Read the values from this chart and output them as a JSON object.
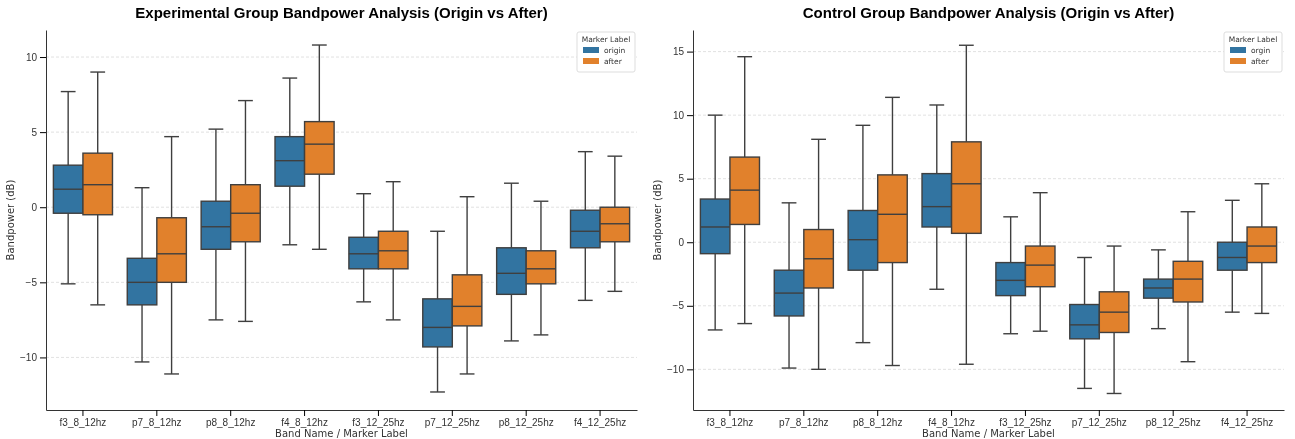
{
  "chart_data": [
    {
      "type": "box",
      "title": "Experimental Group Bandpower Analysis (Origin vs After)",
      "xlabel": "Band Name / Marker Label",
      "ylabel": "Bandpower (dB)",
      "legend_title": "Marker Label",
      "legend": "top right",
      "grid": "y",
      "ylim": [
        -13.5,
        11.8
      ],
      "yticks": [
        -10,
        -5,
        0,
        5,
        10
      ],
      "categories": [
        "f3_8_12hz",
        "p7_8_12hz",
        "p8_8_12hz",
        "f4_8_12hz",
        "f3_12_25hz",
        "p7_12_25hz",
        "p8_12_25hz",
        "f4_12_25hz"
      ],
      "series": [
        {
          "name": "origin",
          "color": "#3274a1",
          "boxes": [
            {
              "low": -5.1,
              "q1": -0.4,
              "median": 1.2,
              "q3": 2.8,
              "high": 7.7
            },
            {
              "low": -10.3,
              "q1": -6.5,
              "median": -5.0,
              "q3": -3.4,
              "high": 1.3
            },
            {
              "low": -7.5,
              "q1": -2.8,
              "median": -1.3,
              "q3": 0.4,
              "high": 5.2
            },
            {
              "low": -2.5,
              "q1": 1.4,
              "median": 3.1,
              "q3": 4.7,
              "high": 8.6
            },
            {
              "low": -6.3,
              "q1": -4.1,
              "median": -3.1,
              "q3": -2.0,
              "high": 0.9
            },
            {
              "low": -12.3,
              "q1": -9.3,
              "median": -8.0,
              "q3": -6.1,
              "high": -1.6
            },
            {
              "low": -8.9,
              "q1": -5.8,
              "median": -4.4,
              "q3": -2.7,
              "high": 1.6
            },
            {
              "low": -6.2,
              "q1": -2.7,
              "median": -1.6,
              "q3": -0.2,
              "high": 3.7
            }
          ]
        },
        {
          "name": "after",
          "color": "#e1812c",
          "boxes": [
            {
              "low": -6.5,
              "q1": -0.5,
              "median": 1.5,
              "q3": 3.6,
              "high": 9.0
            },
            {
              "low": -11.1,
              "q1": -5.0,
              "median": -3.1,
              "q3": -0.7,
              "high": 4.7
            },
            {
              "low": -7.6,
              "q1": -2.3,
              "median": -0.4,
              "q3": 1.5,
              "high": 7.1
            },
            {
              "low": -2.8,
              "q1": 2.2,
              "median": 4.2,
              "q3": 5.7,
              "high": 10.8
            },
            {
              "low": -7.5,
              "q1": -4.1,
              "median": -2.9,
              "q3": -1.6,
              "high": 1.7
            },
            {
              "low": -11.1,
              "q1": -7.9,
              "median": -6.6,
              "q3": -4.5,
              "high": 0.7
            },
            {
              "low": -8.5,
              "q1": -5.1,
              "median": -4.1,
              "q3": -2.9,
              "high": 0.4
            },
            {
              "low": -5.6,
              "q1": -2.3,
              "median": -1.1,
              "q3": 0.0,
              "high": 3.4
            }
          ]
        }
      ]
    },
    {
      "type": "box",
      "title": "Control Group Bandpower Analysis (Origin vs After)",
      "xlabel": "Band Name / Marker Label",
      "ylabel": "Bandpower (dB)",
      "legend_title": "Marker Label",
      "legend": "top right",
      "grid": "y",
      "ylim": [
        -13.2,
        16.7
      ],
      "yticks": [
        -10,
        -5,
        0,
        5,
        10,
        15
      ],
      "categories": [
        "f3_8_12hz",
        "p7_8_12hz",
        "p8_8_12hz",
        "f4_8_12hz",
        "f3_12_25hz",
        "p7_12_25hz",
        "p8_12_25hz",
        "f4_12_25hz"
      ],
      "series": [
        {
          "name": "orgin",
          "color": "#3274a1",
          "boxes": [
            {
              "low": -6.9,
              "q1": -0.9,
              "median": 1.2,
              "q3": 3.4,
              "high": 10.0
            },
            {
              "low": -9.9,
              "q1": -5.8,
              "median": -4.0,
              "q3": -2.2,
              "high": 3.1
            },
            {
              "low": -7.9,
              "q1": -2.2,
              "median": 0.2,
              "q3": 2.5,
              "high": 9.2
            },
            {
              "low": -3.7,
              "q1": 1.2,
              "median": 2.8,
              "q3": 5.4,
              "high": 10.8
            },
            {
              "low": -7.2,
              "q1": -4.2,
              "median": -3.0,
              "q3": -1.6,
              "high": 2.0
            },
            {
              "low": -11.5,
              "q1": -7.6,
              "median": -6.5,
              "q3": -4.9,
              "high": -1.2
            },
            {
              "low": -6.8,
              "q1": -4.4,
              "median": -3.6,
              "q3": -2.9,
              "high": -0.6
            },
            {
              "low": -5.5,
              "q1": -2.2,
              "median": -1.2,
              "q3": 0.0,
              "high": 3.3
            }
          ]
        },
        {
          "name": "after",
          "color": "#e1812c",
          "boxes": [
            {
              "low": -6.4,
              "q1": 1.4,
              "median": 4.1,
              "q3": 6.7,
              "high": 14.6
            },
            {
              "low": -10.0,
              "q1": -3.6,
              "median": -1.3,
              "q3": 1.0,
              "high": 8.1
            },
            {
              "low": -9.7,
              "q1": -1.6,
              "median": 2.2,
              "q3": 5.3,
              "high": 11.4
            },
            {
              "low": -9.6,
              "q1": 0.7,
              "median": 4.6,
              "q3": 7.9,
              "high": 15.5
            },
            {
              "low": -7.0,
              "q1": -3.5,
              "median": -1.8,
              "q3": -0.3,
              "high": 3.9
            },
            {
              "low": -11.9,
              "q1": -7.1,
              "median": -5.5,
              "q3": -3.9,
              "high": -0.3
            },
            {
              "low": -9.4,
              "q1": -4.7,
              "median": -2.9,
              "q3": -1.5,
              "high": 2.4
            },
            {
              "low": -5.6,
              "q1": -1.6,
              "median": -0.3,
              "q3": 1.2,
              "high": 4.6
            }
          ]
        }
      ]
    }
  ]
}
